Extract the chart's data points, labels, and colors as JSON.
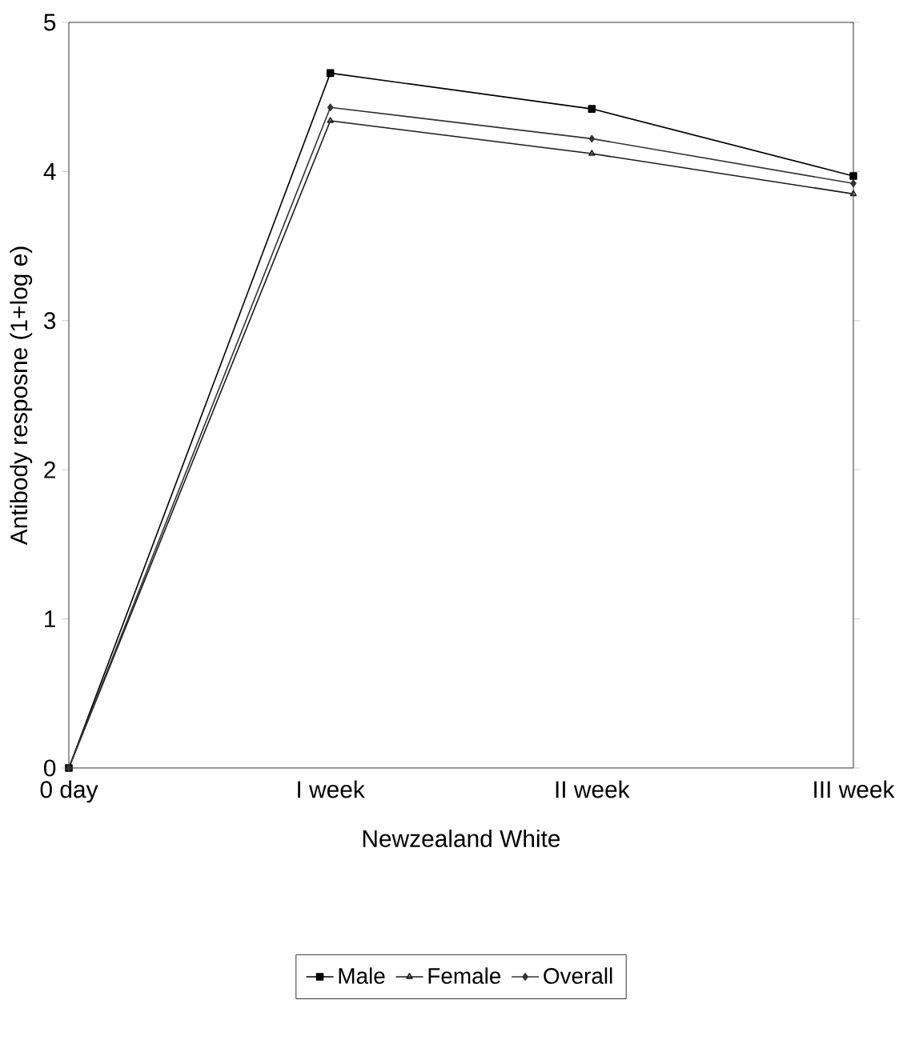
{
  "chart_data": {
    "type": "line",
    "xlabel": "Newzealand White",
    "ylabel": "Antibody resposne (1+log e)",
    "categories": [
      "0 day",
      "I week",
      "II week",
      "III week"
    ],
    "series": [
      {
        "name": "Male",
        "color": "#000000",
        "marker": "square",
        "values": [
          0,
          4.66,
          4.42,
          3.97
        ]
      },
      {
        "name": "Female",
        "color": "#1a1a1a",
        "marker": "triangle",
        "values": [
          0,
          4.34,
          4.12,
          3.85
        ]
      },
      {
        "name": "Overall",
        "color": "#333333",
        "marker": "diamond",
        "values": [
          0,
          4.43,
          4.22,
          3.92
        ]
      }
    ],
    "ylim": [
      0,
      5
    ],
    "yticks": [
      0,
      1,
      2,
      3,
      4,
      5
    ],
    "grid": false,
    "legend": "bottom",
    "line_style": "solid"
  }
}
